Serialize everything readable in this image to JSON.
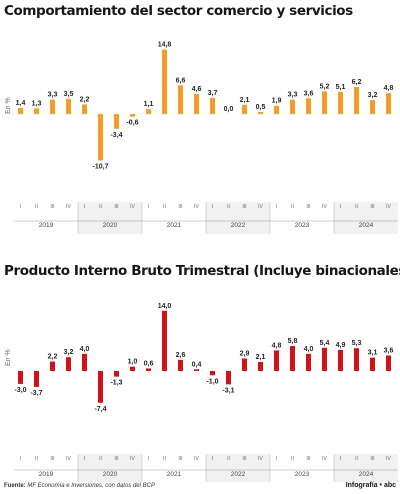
{
  "chart_data": [
    {
      "type": "bar",
      "title": "Comportamiento del sector comercio y servicios",
      "ylabel": "En %",
      "color": "#f0a02a",
      "categories": [
        "I",
        "II",
        "III",
        "IV",
        "I",
        "II",
        "III",
        "IV",
        "I",
        "II",
        "III",
        "IV",
        "I",
        "II",
        "III",
        "IV",
        "I",
        "II",
        "III",
        "IV",
        "I",
        "II",
        "III",
        "IV"
      ],
      "years": [
        "2019",
        "2020",
        "2021",
        "2022",
        "2023",
        "2024"
      ],
      "values": [
        1.4,
        1.3,
        3.3,
        3.5,
        2.2,
        -10.7,
        -3.4,
        -0.6,
        1.1,
        14.8,
        6.6,
        4.6,
        3.7,
        0.0,
        2.1,
        0.5,
        1.9,
        3.3,
        3.6,
        5.2,
        5.1,
        6.2,
        3.2,
        4.8
      ],
      "labels": [
        "1,4",
        "1,3",
        "3,3",
        "3,5",
        "2,2",
        "-10,7",
        "-3,4",
        "-0,6",
        "1,1",
        "14,8",
        "6,6",
        "4,6",
        "3,7",
        "0,0",
        "2,1",
        "0,5",
        "1,9",
        "3,3",
        "3,6",
        "5,2",
        "5,1",
        "6,2",
        "3,2",
        "4,8"
      ],
      "ylim": [
        -11,
        15
      ],
      "grid": false
    },
    {
      "type": "bar",
      "title": "Producto Interno Bruto Trimestral (Incluye binacionales)",
      "ylabel": "En %",
      "color": "#d0121b",
      "categories": [
        "I",
        "II",
        "III",
        "IV",
        "I",
        "II",
        "III",
        "IV",
        "I",
        "II",
        "III",
        "IV",
        "I",
        "II",
        "III",
        "IV",
        "I",
        "II",
        "III",
        "IV",
        "I",
        "II",
        "III",
        "IV"
      ],
      "years": [
        "2019",
        "2020",
        "2021",
        "2022",
        "2023",
        "2024"
      ],
      "values": [
        -3.0,
        -3.7,
        2.2,
        3.2,
        4.0,
        -7.4,
        -1.3,
        1.0,
        0.6,
        14.0,
        2.6,
        0.4,
        -1.0,
        -3.1,
        2.9,
        2.1,
        4.8,
        5.8,
        4.0,
        5.4,
        4.9,
        5.3,
        3.1,
        3.6
      ],
      "labels": [
        "-3,0",
        "-3,7",
        "2,2",
        "3,2",
        "4,0",
        "-7,4",
        "-1,3",
        "1,0",
        "0,6",
        "14,0",
        "2,6",
        "0,4",
        "-1,0",
        "-3,1",
        "2,9",
        "2,1",
        "4,8",
        "5,8",
        "4,0",
        "5,4",
        "4,9",
        "5,3",
        "3,1",
        "3,6"
      ],
      "ylim": [
        -8,
        14.5
      ],
      "grid": false
    }
  ],
  "footer": {
    "source_label": "Fuente:",
    "source_text": "MF Economía e Inversiones, con datos del BCP",
    "credit": "Infografía • ",
    "credit_brand": "abc"
  }
}
